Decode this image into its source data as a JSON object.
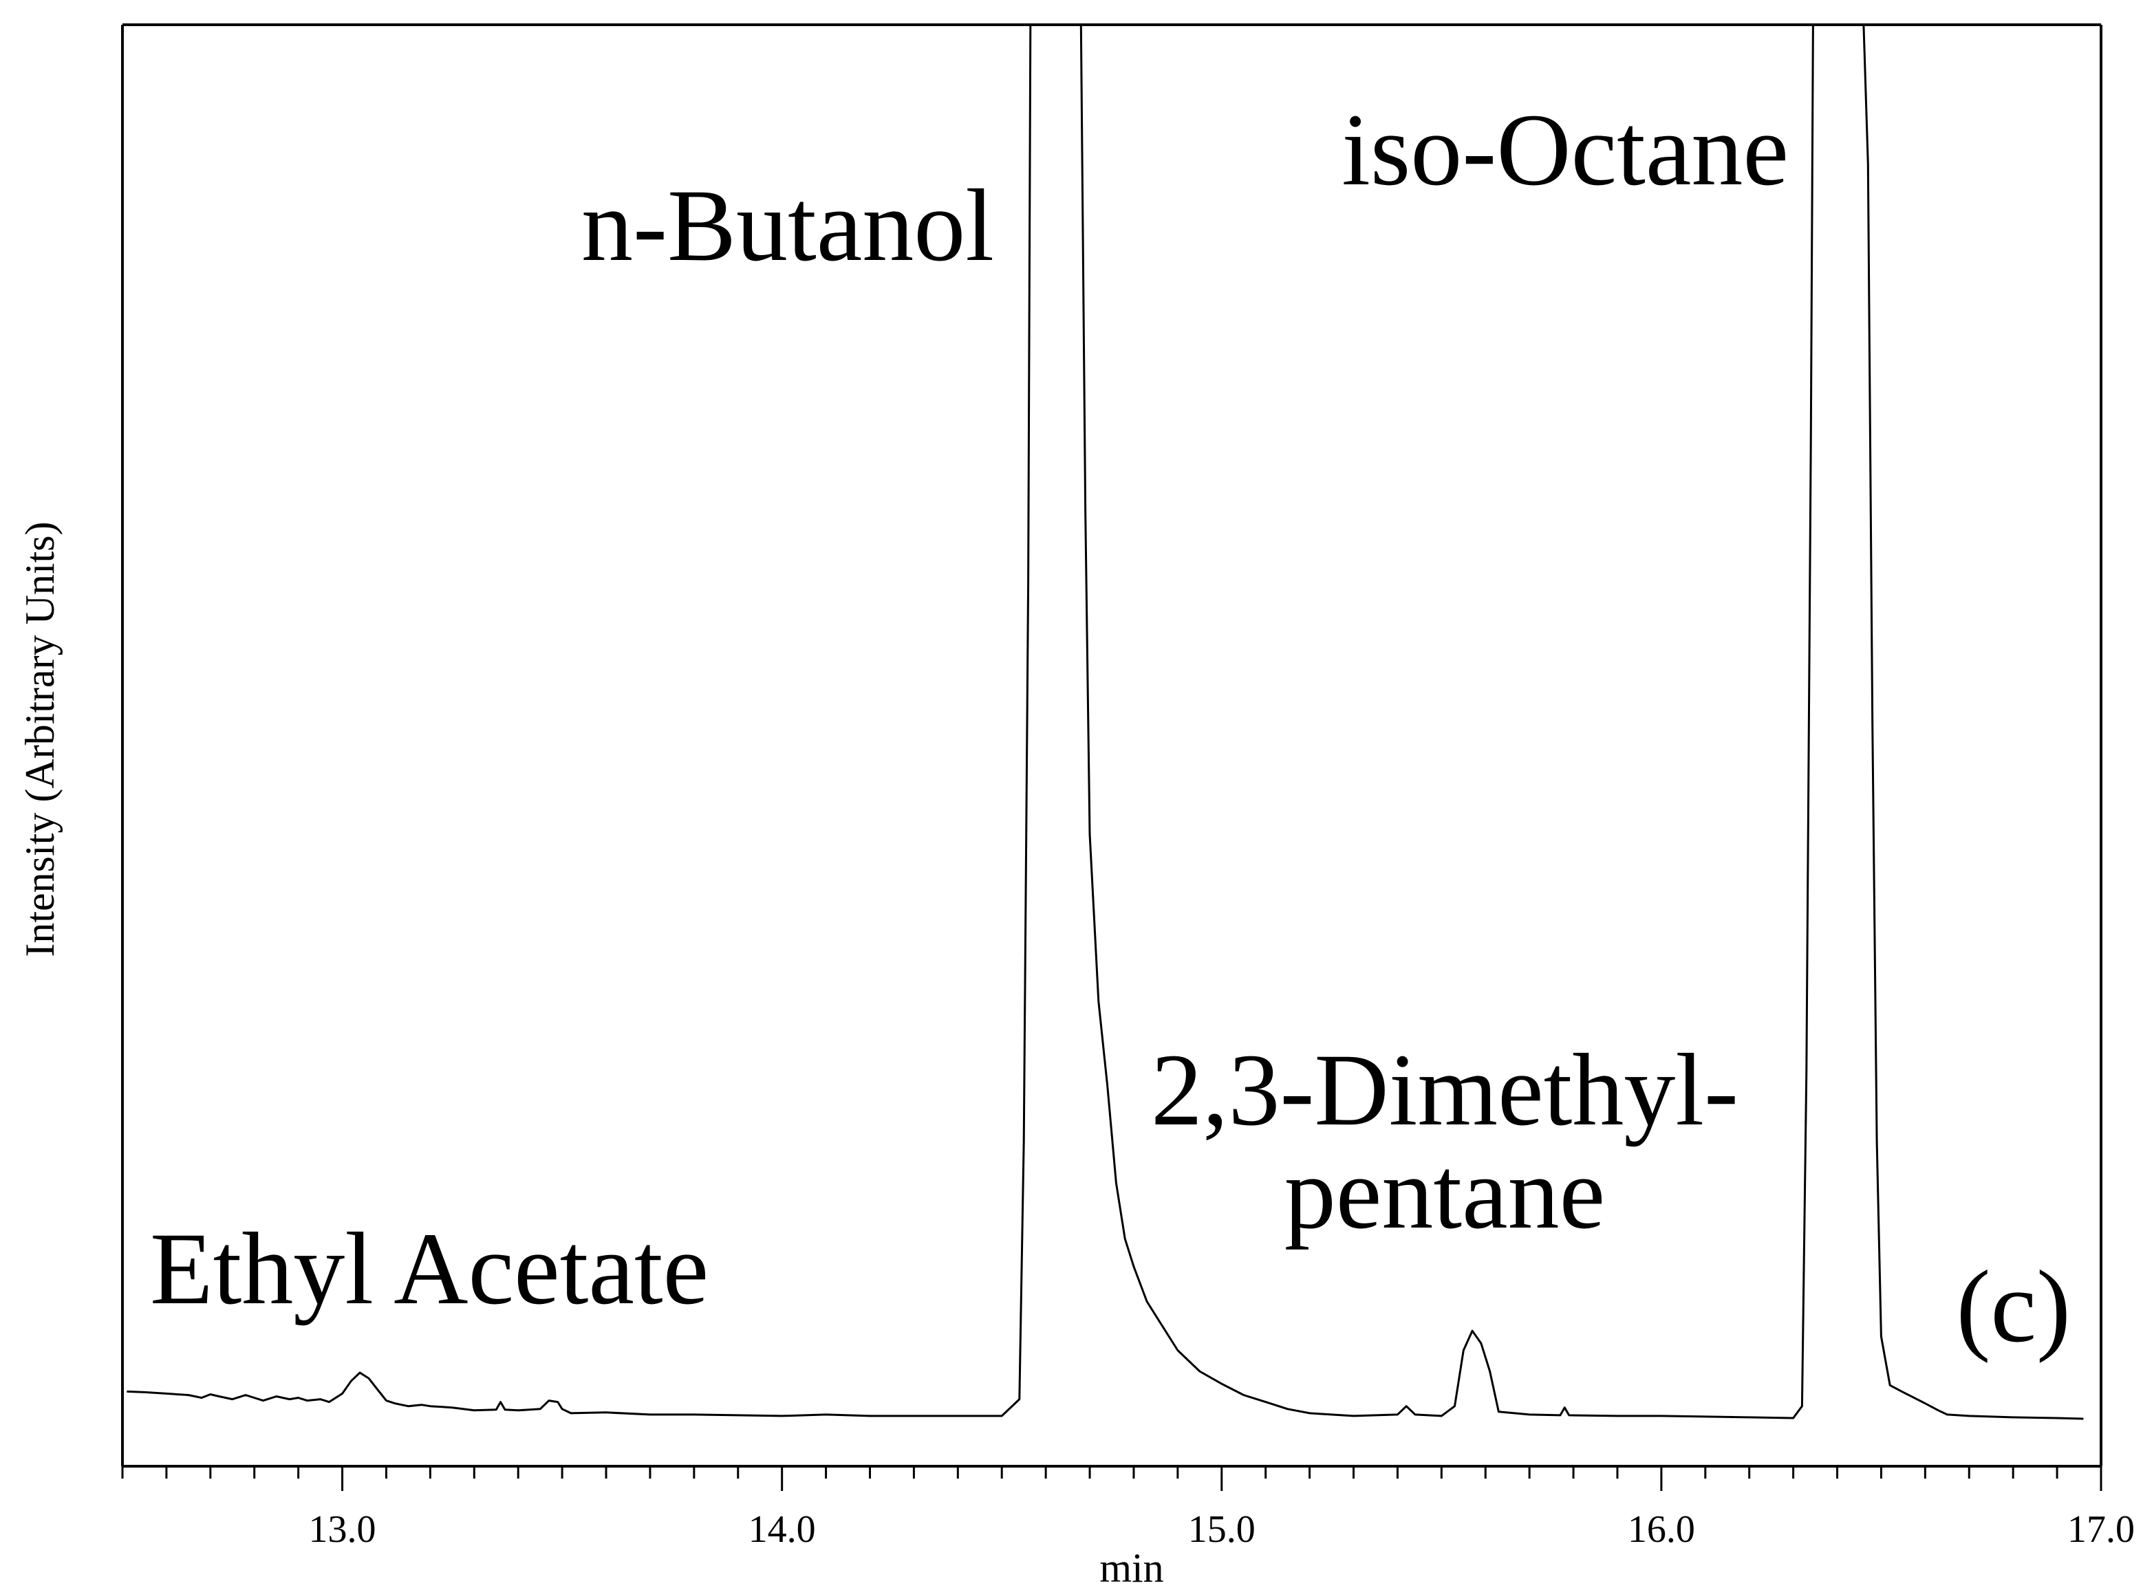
{
  "chart_data": {
    "type": "line",
    "xlabel": "min",
    "ylabel": "Intensity (Arbitrary Units)",
    "xlim": [
      12.5,
      17.0
    ],
    "ylim": [
      0,
      100
    ],
    "x_ticks": [
      "13.0",
      "14.0",
      "15.0",
      "16.0",
      "17.0"
    ],
    "x_tick_values": [
      13.0,
      14.0,
      15.0,
      16.0,
      17.0
    ],
    "x_minor_step": 0.1,
    "grid": false,
    "legend": "none",
    "panel_label": "(c)",
    "peaks": [
      {
        "label": [
          "Ethyl Acetate"
        ],
        "x": 13.05
      },
      {
        "label": [
          "n-Butanol"
        ],
        "x": 14.63
      },
      {
        "label": [
          "2,3-Dimethyl-",
          "pentane"
        ],
        "x": 15.58
      },
      {
        "label": [
          "iso-Octane"
        ],
        "x": 16.41
      }
    ],
    "series": [
      {
        "x": [
          12.51,
          12.55,
          12.6,
          12.65,
          12.68,
          12.7,
          12.72,
          12.75,
          12.78,
          12.8,
          12.82,
          12.85,
          12.88,
          12.9,
          12.92,
          12.95,
          12.97,
          13.0,
          13.02,
          13.04,
          13.06,
          13.08,
          13.1,
          13.12,
          13.15,
          13.18,
          13.2,
          13.25,
          13.3,
          13.35,
          13.36,
          13.37,
          13.4,
          13.45,
          13.47,
          13.49,
          13.5,
          13.52,
          13.6,
          13.7,
          13.8,
          13.9,
          14.0,
          14.1,
          14.2,
          14.3,
          14.4,
          14.5,
          14.54,
          14.55,
          14.56,
          14.565,
          14.57,
          14.58,
          14.6,
          14.66,
          14.67,
          14.68,
          14.69,
          14.7,
          14.72,
          14.74,
          14.76,
          14.78,
          14.8,
          14.83,
          14.86,
          14.9,
          14.95,
          15.0,
          15.05,
          15.1,
          15.15,
          15.2,
          15.3,
          15.4,
          15.42,
          15.44,
          15.5,
          15.53,
          15.55,
          15.57,
          15.59,
          15.61,
          15.63,
          15.7,
          15.77,
          15.78,
          15.79,
          15.9,
          16.0,
          16.1,
          16.2,
          16.3,
          16.32,
          16.33,
          16.34,
          16.345,
          16.35,
          16.38,
          16.45,
          16.46,
          16.47,
          16.48,
          16.49,
          16.5,
          16.52,
          16.55,
          16.6,
          16.63,
          16.65,
          16.7,
          16.8,
          16.9,
          16.96
        ],
        "y": [
          2.05,
          2.0,
          1.9,
          1.8,
          1.6,
          1.85,
          1.7,
          1.5,
          1.8,
          1.6,
          1.4,
          1.7,
          1.5,
          1.6,
          1.4,
          1.5,
          1.3,
          1.9,
          2.8,
          3.4,
          3.0,
          2.2,
          1.4,
          1.2,
          1.0,
          1.1,
          1.0,
          0.9,
          0.7,
          0.75,
          1.3,
          0.75,
          0.7,
          0.8,
          1.4,
          1.3,
          0.8,
          0.5,
          0.55,
          0.4,
          0.4,
          0.35,
          0.3,
          0.4,
          0.3,
          0.3,
          0.3,
          0.3,
          1.5,
          20.0,
          60.0,
          100.0,
          100.0,
          100.0,
          100.0,
          100.0,
          100.0,
          100.0,
          65.0,
          42.0,
          30.0,
          24.0,
          17.0,
          13.0,
          11.0,
          8.5,
          7.0,
          5.0,
          3.5,
          2.6,
          1.8,
          1.3,
          0.8,
          0.5,
          0.3,
          0.4,
          1.0,
          0.4,
          0.3,
          1.0,
          5.0,
          6.4,
          5.5,
          3.5,
          0.6,
          0.4,
          0.35,
          0.9,
          0.35,
          0.3,
          0.3,
          0.25,
          0.2,
          0.15,
          1.0,
          25.0,
          70.0,
          100.0,
          100.0,
          100.0,
          100.0,
          100.0,
          90.0,
          50.0,
          20.0,
          6.0,
          2.5,
          2.0,
          1.2,
          0.7,
          0.4,
          0.3,
          0.2,
          0.15,
          0.1
        ]
      }
    ]
  }
}
